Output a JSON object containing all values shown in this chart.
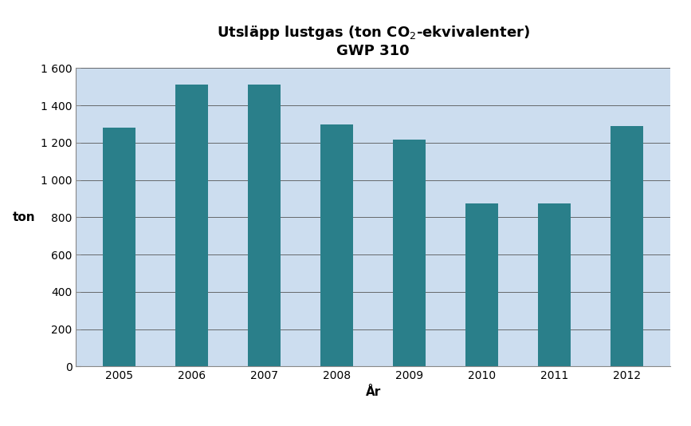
{
  "years": [
    "2005",
    "2006",
    "2007",
    "2008",
    "2009",
    "2010",
    "2011",
    "2012"
  ],
  "values": [
    1280,
    1510,
    1510,
    1300,
    1215,
    875,
    875,
    1290
  ],
  "bar_color": "#2a7f8a",
  "background_color": "#ccddef",
  "title_line1": "Utsläpp lustgas (ton CO$_2$-ekvivalenter)",
  "title_line2": "GWP 310",
  "xlabel": "År",
  "ylabel": "ton",
  "ylim": [
    0,
    1600
  ],
  "yticks": [
    0,
    200,
    400,
    600,
    800,
    1000,
    1200,
    1400,
    1600
  ],
  "ytick_labels": [
    "0",
    "200",
    "400",
    "600",
    "800",
    "1 000",
    "1 200",
    "1 400",
    "1 600"
  ],
  "title_fontsize": 13,
  "axis_label_fontsize": 11,
  "tick_fontsize": 10,
  "bar_width": 0.45
}
